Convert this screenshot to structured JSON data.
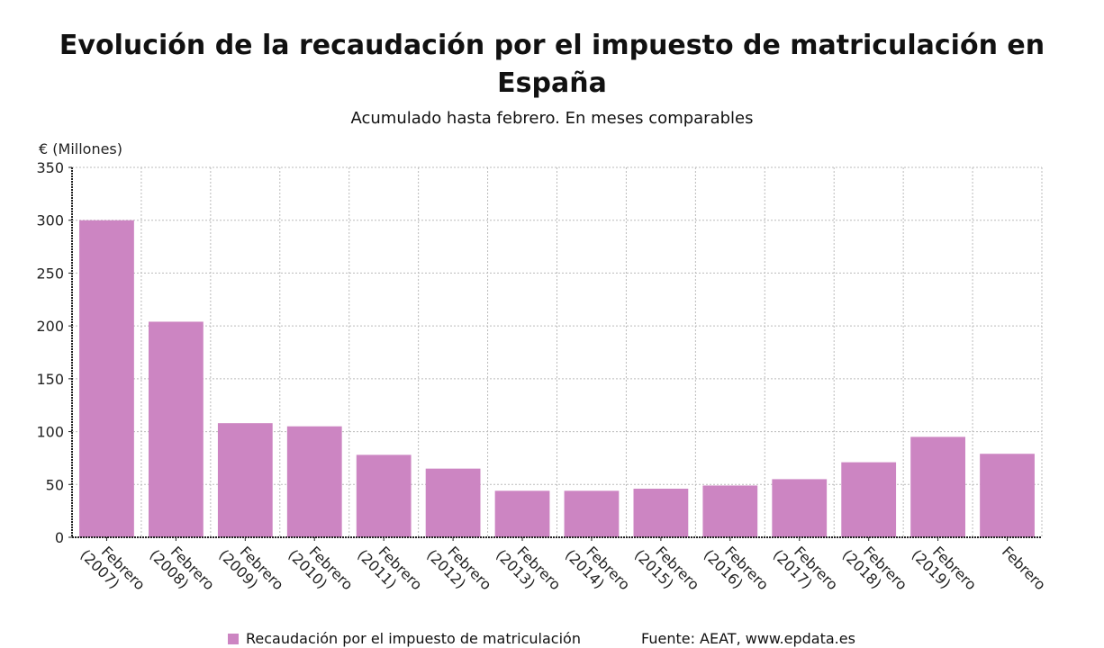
{
  "chart_data": {
    "type": "bar",
    "title": "Evolución de la recaudación por el impuesto de matriculación en España",
    "subtitle": "Acumulado hasta febrero. En meses comparables",
    "ylabel": "€ (Millones)",
    "xlabel": "",
    "ylim": [
      0,
      350
    ],
    "yticks": [
      0,
      50,
      100,
      150,
      200,
      250,
      300,
      350
    ],
    "grid": true,
    "categories": [
      [
        "Febrero",
        "(2007)"
      ],
      [
        "Febrero",
        "(2008)"
      ],
      [
        "Febrero",
        "(2009)"
      ],
      [
        "Febrero",
        "(2010)"
      ],
      [
        "Febrero",
        "(2011)"
      ],
      [
        "Febrero",
        "(2012)"
      ],
      [
        "Febrero",
        "(2013)"
      ],
      [
        "Febrero",
        "(2014)"
      ],
      [
        "Febrero",
        "(2015)"
      ],
      [
        "Febrero",
        "(2016)"
      ],
      [
        "Febrero",
        "(2017)"
      ],
      [
        "Febrero",
        "(2018)"
      ],
      [
        "Febrero",
        "(2019)"
      ],
      [
        "Febrero"
      ]
    ],
    "series": [
      {
        "name": "Recaudación por el impuesto de matriculación",
        "color": "#cc85c2",
        "values": [
          300,
          204,
          108,
          105,
          78,
          65,
          44,
          44,
          46,
          49,
          55,
          71,
          95,
          79
        ]
      }
    ],
    "legend_position": "bottom-left",
    "source": "Fuente: AEAT, www.epdata.es"
  }
}
